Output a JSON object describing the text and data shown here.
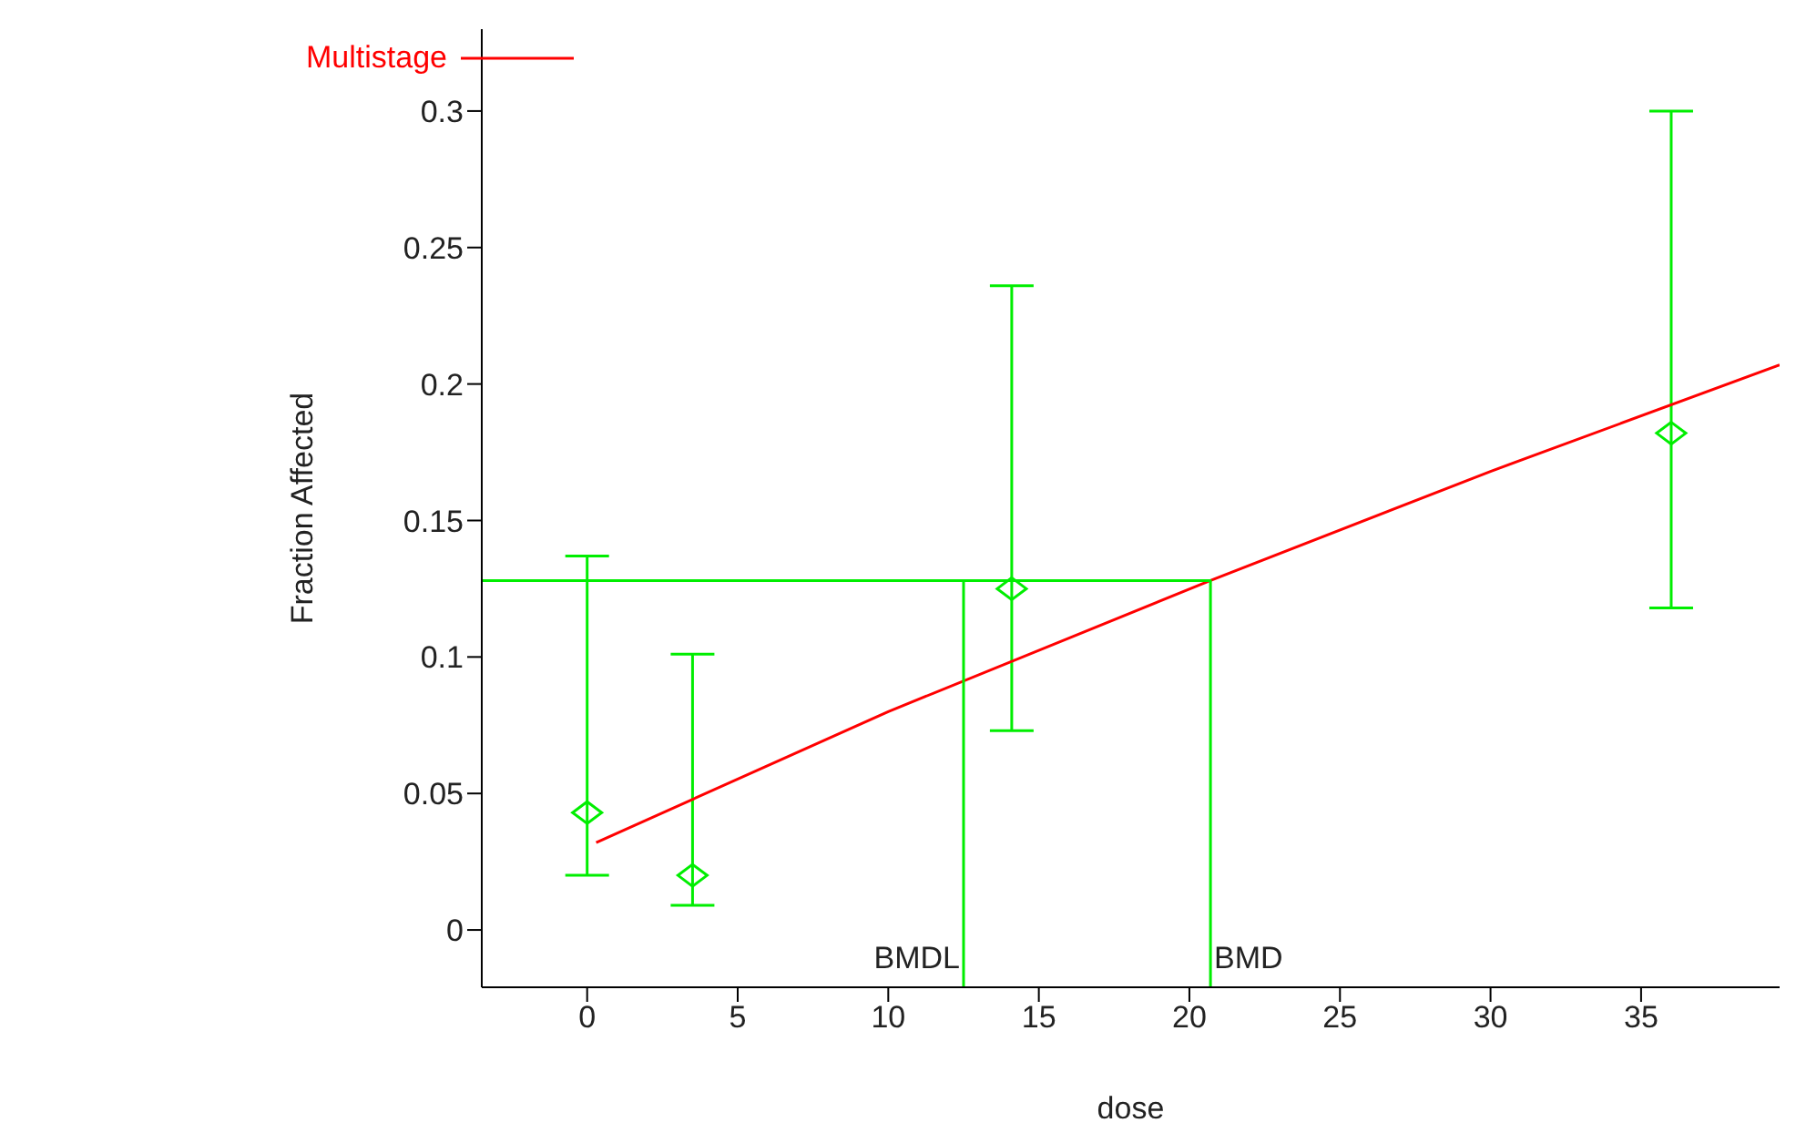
{
  "chart_data": {
    "type": "scatter",
    "xlabel": "dose",
    "ylabel": "Fraction Affected",
    "xlim": [
      -3.5,
      39.6
    ],
    "ylim": [
      -0.021,
      0.33
    ],
    "xticks": [
      0,
      5,
      10,
      15,
      20,
      25,
      30,
      35
    ],
    "yticks": [
      0,
      0.05,
      0.1,
      0.15,
      0.2,
      0.25,
      0.3
    ],
    "grid": false,
    "legend": "top left",
    "series": [
      {
        "color": "#00ee00",
        "marker": "diamond",
        "x": [
          0,
          3.5,
          14.1,
          36
        ],
        "values": [
          0.043,
          0.02,
          0.125,
          0.182
        ],
        "errors": [
          [
            0.02,
            0.137
          ],
          [
            0.009,
            0.101
          ],
          [
            0.073,
            0.236
          ],
          [
            0.118,
            0.3
          ]
        ]
      },
      {
        "type": "line",
        "name": "Multistage",
        "color": "#ff0000",
        "x": [
          0.3,
          10,
          20.7,
          30,
          39.6
        ],
        "values": [
          0.032,
          0.08,
          0.128,
          0.168,
          0.207
        ]
      },
      {
        "type": "line",
        "color": "#00ee00",
        "x": [
          -3.5,
          20.7,
          20.7
        ],
        "values": [
          0.128,
          0.128,
          -0.021
        ]
      },
      {
        "type": "line",
        "color": "#00ee00",
        "x": [
          12.5,
          12.5
        ],
        "values": [
          0.128,
          -0.021
        ]
      }
    ],
    "annotations": [
      {
        "text": "BMDL",
        "x": 12.5,
        "y": -0.01
      },
      {
        "text": "BMD",
        "x": 20.7,
        "y": -0.01
      }
    ]
  }
}
